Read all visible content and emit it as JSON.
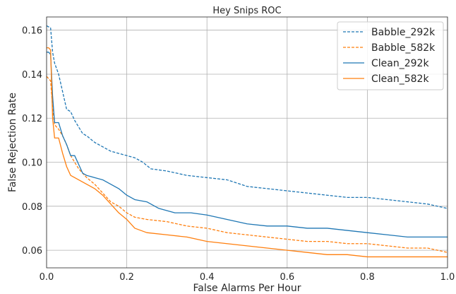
{
  "chart_data": {
    "type": "line",
    "title": "Hey Snips ROC",
    "xlabel": "False Alarms Per Hour",
    "ylabel": "False Rejection Rate",
    "xlim": [
      0,
      1.0
    ],
    "ylim": [
      0.052,
      0.166
    ],
    "xticks": [
      0.0,
      0.2,
      0.4,
      0.6,
      0.8,
      1.0
    ],
    "xtick_labels": [
      "0.0",
      "0.2",
      "0.4",
      "0.6",
      "0.8",
      "1.0"
    ],
    "yticks": [
      0.06,
      0.08,
      0.1,
      0.12,
      0.14,
      0.16
    ],
    "ytick_labels": [
      "0.06",
      "0.08",
      "0.10",
      "0.12",
      "0.14",
      "0.16"
    ],
    "grid": true,
    "legend_position": "top-right",
    "series": [
      {
        "name": "Babble_292k",
        "color": "#1f77b4",
        "linestyle": "dashed",
        "x": [
          0.0,
          0.01,
          0.015,
          0.02,
          0.03,
          0.04,
          0.05,
          0.06,
          0.07,
          0.08,
          0.09,
          0.1,
          0.12,
          0.14,
          0.16,
          0.18,
          0.2,
          0.22,
          0.24,
          0.26,
          0.3,
          0.35,
          0.4,
          0.45,
          0.5,
          0.55,
          0.6,
          0.65,
          0.7,
          0.75,
          0.8,
          0.85,
          0.9,
          0.95,
          1.0
        ],
        "y": [
          0.162,
          0.161,
          0.15,
          0.145,
          0.14,
          0.132,
          0.124,
          0.123,
          0.119,
          0.116,
          0.113,
          0.112,
          0.109,
          0.107,
          0.105,
          0.104,
          0.103,
          0.102,
          0.1,
          0.097,
          0.096,
          0.094,
          0.093,
          0.092,
          0.089,
          0.088,
          0.087,
          0.086,
          0.085,
          0.084,
          0.084,
          0.083,
          0.082,
          0.081,
          0.079
        ]
      },
      {
        "name": "Babble_582k",
        "color": "#ff7f0e",
        "linestyle": "dashed",
        "x": [
          0.0,
          0.01,
          0.015,
          0.02,
          0.03,
          0.04,
          0.05,
          0.06,
          0.07,
          0.08,
          0.1,
          0.12,
          0.14,
          0.16,
          0.18,
          0.2,
          0.22,
          0.25,
          0.3,
          0.35,
          0.4,
          0.45,
          0.5,
          0.55,
          0.6,
          0.65,
          0.7,
          0.75,
          0.8,
          0.85,
          0.9,
          0.95,
          1.0
        ],
        "y": [
          0.139,
          0.137,
          0.125,
          0.117,
          0.115,
          0.112,
          0.108,
          0.103,
          0.1,
          0.097,
          0.093,
          0.09,
          0.086,
          0.082,
          0.08,
          0.077,
          0.075,
          0.074,
          0.073,
          0.071,
          0.07,
          0.068,
          0.067,
          0.066,
          0.065,
          0.064,
          0.064,
          0.063,
          0.063,
          0.062,
          0.061,
          0.061,
          0.059
        ]
      },
      {
        "name": "Clean_292k",
        "color": "#1f77b4",
        "linestyle": "solid",
        "x": [
          0.0,
          0.005,
          0.01,
          0.015,
          0.02,
          0.03,
          0.04,
          0.05,
          0.06,
          0.07,
          0.08,
          0.09,
          0.1,
          0.12,
          0.14,
          0.16,
          0.18,
          0.2,
          0.22,
          0.25,
          0.28,
          0.32,
          0.36,
          0.4,
          0.45,
          0.5,
          0.55,
          0.6,
          0.65,
          0.7,
          0.75,
          0.8,
          0.85,
          0.9,
          0.95,
          1.0
        ],
        "y": [
          0.15,
          0.15,
          0.149,
          0.13,
          0.118,
          0.118,
          0.112,
          0.108,
          0.103,
          0.103,
          0.099,
          0.095,
          0.094,
          0.093,
          0.092,
          0.09,
          0.088,
          0.085,
          0.083,
          0.082,
          0.079,
          0.077,
          0.077,
          0.076,
          0.074,
          0.072,
          0.071,
          0.071,
          0.07,
          0.07,
          0.069,
          0.068,
          0.067,
          0.066,
          0.066,
          0.066
        ]
      },
      {
        "name": "Clean_582k",
        "color": "#ff7f0e",
        "linestyle": "solid",
        "x": [
          0.0,
          0.005,
          0.01,
          0.015,
          0.02,
          0.03,
          0.04,
          0.05,
          0.06,
          0.07,
          0.08,
          0.1,
          0.12,
          0.14,
          0.16,
          0.18,
          0.2,
          0.22,
          0.25,
          0.3,
          0.35,
          0.4,
          0.45,
          0.5,
          0.55,
          0.6,
          0.65,
          0.7,
          0.75,
          0.8,
          0.85,
          0.9,
          0.95,
          1.0
        ],
        "y": [
          0.152,
          0.152,
          0.151,
          0.12,
          0.111,
          0.111,
          0.104,
          0.098,
          0.094,
          0.093,
          0.092,
          0.09,
          0.088,
          0.085,
          0.081,
          0.077,
          0.074,
          0.07,
          0.068,
          0.067,
          0.066,
          0.064,
          0.063,
          0.062,
          0.061,
          0.06,
          0.059,
          0.058,
          0.058,
          0.057,
          0.057,
          0.057,
          0.057,
          0.057
        ]
      }
    ]
  }
}
